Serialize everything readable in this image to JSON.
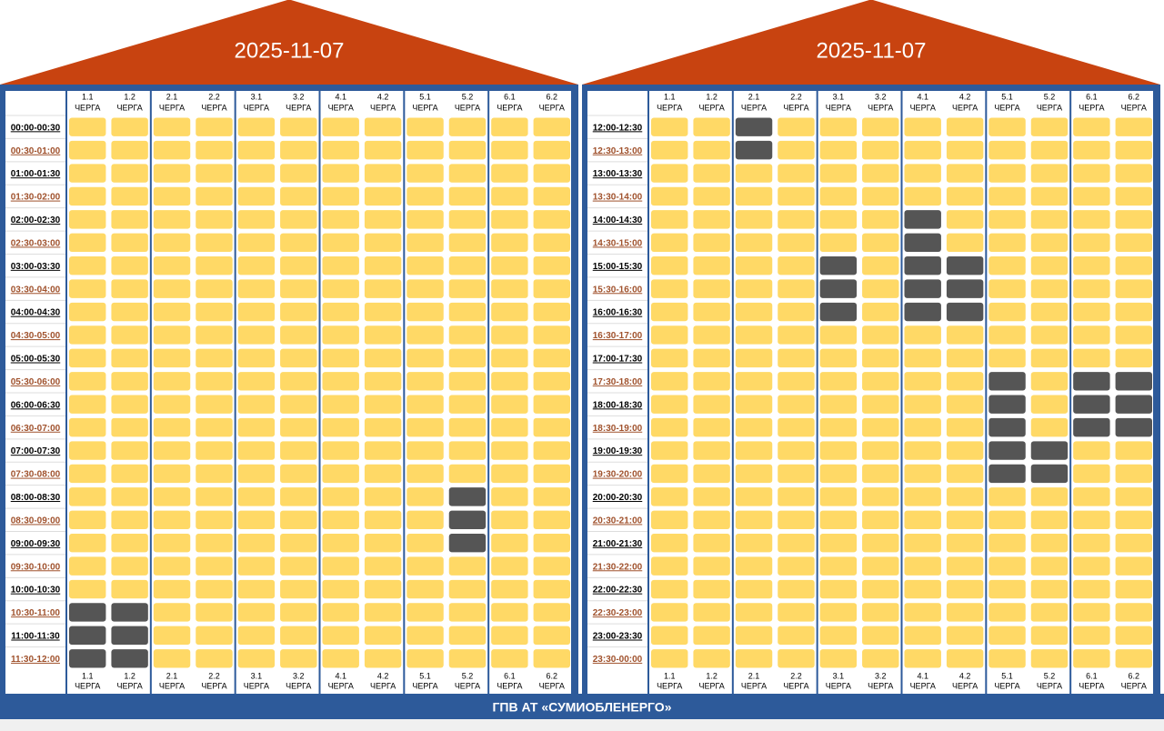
{
  "panels": [
    {
      "date": "2025-11-07",
      "times": [
        "00:00-00:30",
        "00:30-01:00",
        "01:00-01:30",
        "01:30-02:00",
        "02:00-02:30",
        "02:30-03:00",
        "03:00-03:30",
        "03:30-04:00",
        "04:00-04:30",
        "04:30-05:00",
        "05:00-05:30",
        "05:30-06:00",
        "06:00-06:30",
        "06:30-07:00",
        "07:00-07:30",
        "07:30-08:00",
        "08:00-08:30",
        "08:30-09:00",
        "09:00-09:30",
        "09:30-10:00",
        "10:00-10:30",
        "10:30-11:00",
        "11:00-11:30",
        "11:30-12:00"
      ],
      "grid": [
        [
          0,
          0,
          0,
          0,
          0,
          0,
          0,
          0,
          0,
          0,
          0,
          0
        ],
        [
          0,
          0,
          0,
          0,
          0,
          0,
          0,
          0,
          0,
          0,
          0,
          0
        ],
        [
          0,
          0,
          0,
          0,
          0,
          0,
          0,
          0,
          0,
          0,
          0,
          0
        ],
        [
          0,
          0,
          0,
          0,
          0,
          0,
          0,
          0,
          0,
          0,
          0,
          0
        ],
        [
          0,
          0,
          0,
          0,
          0,
          0,
          0,
          0,
          0,
          0,
          0,
          0
        ],
        [
          0,
          0,
          0,
          0,
          0,
          0,
          0,
          0,
          0,
          0,
          0,
          0
        ],
        [
          0,
          0,
          0,
          0,
          0,
          0,
          0,
          0,
          0,
          0,
          0,
          0
        ],
        [
          0,
          0,
          0,
          0,
          0,
          0,
          0,
          0,
          0,
          0,
          0,
          0
        ],
        [
          0,
          0,
          0,
          0,
          0,
          0,
          0,
          0,
          0,
          0,
          0,
          0
        ],
        [
          0,
          0,
          0,
          0,
          0,
          0,
          0,
          0,
          0,
          0,
          0,
          0
        ],
        [
          0,
          0,
          0,
          0,
          0,
          0,
          0,
          0,
          0,
          0,
          0,
          0
        ],
        [
          0,
          0,
          0,
          0,
          0,
          0,
          0,
          0,
          0,
          0,
          0,
          0
        ],
        [
          0,
          0,
          0,
          0,
          0,
          0,
          0,
          0,
          0,
          0,
          0,
          0
        ],
        [
          0,
          0,
          0,
          0,
          0,
          0,
          0,
          0,
          0,
          0,
          0,
          0
        ],
        [
          0,
          0,
          0,
          0,
          0,
          0,
          0,
          0,
          0,
          0,
          0,
          0
        ],
        [
          0,
          0,
          0,
          0,
          0,
          0,
          0,
          0,
          0,
          0,
          0,
          0
        ],
        [
          0,
          0,
          0,
          0,
          0,
          0,
          0,
          0,
          0,
          1,
          0,
          0
        ],
        [
          0,
          0,
          0,
          0,
          0,
          0,
          0,
          0,
          0,
          1,
          0,
          0
        ],
        [
          0,
          0,
          0,
          0,
          0,
          0,
          0,
          0,
          0,
          1,
          0,
          0
        ],
        [
          0,
          0,
          0,
          0,
          0,
          0,
          0,
          0,
          0,
          0,
          0,
          0
        ],
        [
          0,
          0,
          0,
          0,
          0,
          0,
          0,
          0,
          0,
          0,
          0,
          0
        ],
        [
          1,
          1,
          0,
          0,
          0,
          0,
          0,
          0,
          0,
          0,
          0,
          0
        ],
        [
          1,
          1,
          0,
          0,
          0,
          0,
          0,
          0,
          0,
          0,
          0,
          0
        ],
        [
          1,
          1,
          0,
          0,
          0,
          0,
          0,
          0,
          0,
          0,
          0,
          0
        ]
      ]
    },
    {
      "date": "2025-11-07",
      "times": [
        "12:00-12:30",
        "12:30-13:00",
        "13:00-13:30",
        "13:30-14:00",
        "14:00-14:30",
        "14:30-15:00",
        "15:00-15:30",
        "15:30-16:00",
        "16:00-16:30",
        "16:30-17:00",
        "17:00-17:30",
        "17:30-18:00",
        "18:00-18:30",
        "18:30-19:00",
        "19:00-19:30",
        "19:30-20:00",
        "20:00-20:30",
        "20:30-21:00",
        "21:00-21:30",
        "21:30-22:00",
        "22:00-22:30",
        "22:30-23:00",
        "23:00-23:30",
        "23:30-00:00"
      ],
      "grid": [
        [
          0,
          0,
          1,
          0,
          0,
          0,
          0,
          0,
          0,
          0,
          0,
          0
        ],
        [
          0,
          0,
          1,
          0,
          0,
          0,
          0,
          0,
          0,
          0,
          0,
          0
        ],
        [
          0,
          0,
          0,
          0,
          0,
          0,
          0,
          0,
          0,
          0,
          0,
          0
        ],
        [
          0,
          0,
          0,
          0,
          0,
          0,
          0,
          0,
          0,
          0,
          0,
          0
        ],
        [
          0,
          0,
          0,
          0,
          0,
          0,
          1,
          0,
          0,
          0,
          0,
          0
        ],
        [
          0,
          0,
          0,
          0,
          0,
          0,
          1,
          0,
          0,
          0,
          0,
          0
        ],
        [
          0,
          0,
          0,
          0,
          1,
          0,
          1,
          1,
          0,
          0,
          0,
          0
        ],
        [
          0,
          0,
          0,
          0,
          1,
          0,
          1,
          1,
          0,
          0,
          0,
          0
        ],
        [
          0,
          0,
          0,
          0,
          1,
          0,
          1,
          1,
          0,
          0,
          0,
          0
        ],
        [
          0,
          0,
          0,
          0,
          0,
          0,
          0,
          0,
          0,
          0,
          0,
          0
        ],
        [
          0,
          0,
          0,
          0,
          0,
          0,
          0,
          0,
          0,
          0,
          0,
          0
        ],
        [
          0,
          0,
          0,
          0,
          0,
          0,
          0,
          0,
          1,
          0,
          1,
          1
        ],
        [
          0,
          0,
          0,
          0,
          0,
          0,
          0,
          0,
          1,
          0,
          1,
          1
        ],
        [
          0,
          0,
          0,
          0,
          0,
          0,
          0,
          0,
          1,
          0,
          1,
          1
        ],
        [
          0,
          0,
          0,
          0,
          0,
          0,
          0,
          0,
          1,
          1,
          0,
          0
        ],
        [
          0,
          0,
          0,
          0,
          0,
          0,
          0,
          0,
          1,
          1,
          0,
          0
        ],
        [
          0,
          0,
          0,
          0,
          0,
          0,
          0,
          0,
          0,
          0,
          0,
          0
        ],
        [
          0,
          0,
          0,
          0,
          0,
          0,
          0,
          0,
          0,
          0,
          0,
          0
        ],
        [
          0,
          0,
          0,
          0,
          0,
          0,
          0,
          0,
          0,
          0,
          0,
          0
        ],
        [
          0,
          0,
          0,
          0,
          0,
          0,
          0,
          0,
          0,
          0,
          0,
          0
        ],
        [
          0,
          0,
          0,
          0,
          0,
          0,
          0,
          0,
          0,
          0,
          0,
          0
        ],
        [
          0,
          0,
          0,
          0,
          0,
          0,
          0,
          0,
          0,
          0,
          0,
          0
        ],
        [
          0,
          0,
          0,
          0,
          0,
          0,
          0,
          0,
          0,
          0,
          0,
          0
        ],
        [
          0,
          0,
          0,
          0,
          0,
          0,
          0,
          0,
          0,
          0,
          0,
          0
        ]
      ]
    }
  ],
  "queues": [
    "1.1",
    "1.2",
    "2.1",
    "2.2",
    "3.1",
    "3.2",
    "4.1",
    "4.2",
    "5.1",
    "5.2",
    "6.1",
    "6.2"
  ],
  "queue_word": "ЧЕРГА",
  "footer": "ГПВ АТ «СУМИОБЛЕНЕРГО»"
}
